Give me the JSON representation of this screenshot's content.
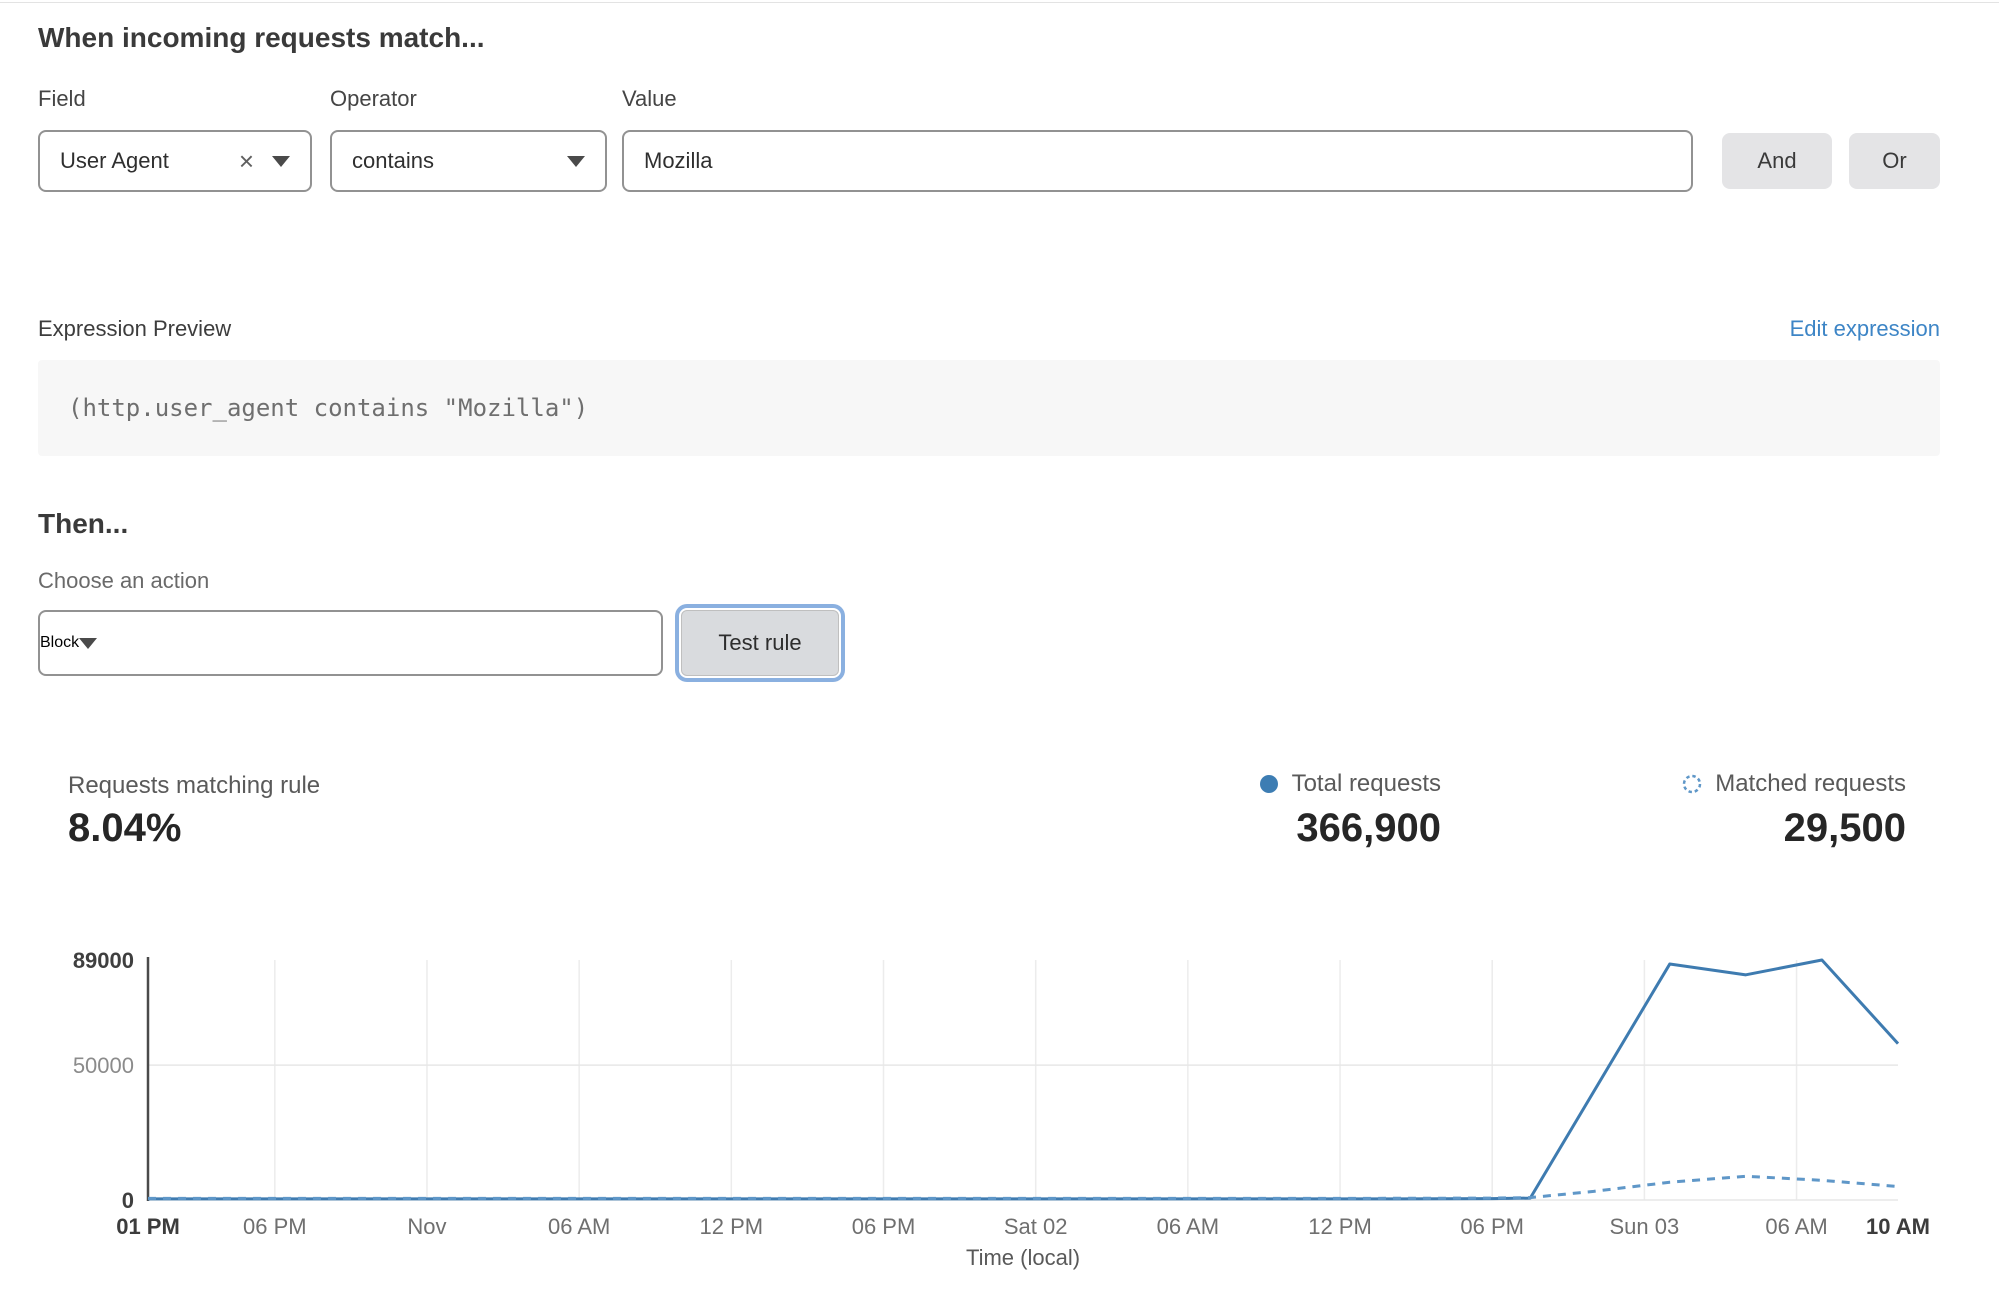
{
  "rule_builder": {
    "heading": "When incoming requests match...",
    "field": {
      "label": "Field",
      "selected": "User Agent"
    },
    "operator": {
      "label": "Operator",
      "selected": "contains"
    },
    "value": {
      "label": "Value",
      "text": "Mozilla"
    },
    "and_button": "And",
    "or_button": "Or",
    "clear_icon_glyph": "×"
  },
  "expression": {
    "label": "Expression Preview",
    "edit_link": "Edit expression",
    "code": "(http.user_agent contains \"Mozilla\")"
  },
  "action": {
    "heading": "Then...",
    "label": "Choose an action",
    "selected": "Block",
    "test_button": "Test rule"
  },
  "stats": {
    "matching": {
      "label": "Requests matching rule",
      "value": "8.04%"
    },
    "total": {
      "label": "Total requests",
      "value": "366,900"
    },
    "matched": {
      "label": "Matched requests",
      "value": "29,500"
    }
  },
  "colors": {
    "line_total": "#3e7bb0",
    "line_matched": "#5f97c8",
    "legend_dot": "#3d7db3",
    "link": "#3d85c6",
    "focus_ring": "#8ab0e0"
  },
  "chart_data": {
    "type": "line",
    "xlabel": "Time (local)",
    "ylabel": "",
    "x_unit": "hours since first tick (01 PM Fri)",
    "xlim": [
      0,
      69
    ],
    "ylim": [
      0,
      89000
    ],
    "grid": true,
    "legend_position": "top-right above chart",
    "y_ticks": [
      {
        "v": 89000,
        "label": "89000",
        "strong": true
      },
      {
        "v": 50000,
        "label": "50000",
        "strong": false
      },
      {
        "v": 0,
        "label": "0",
        "strong": true
      }
    ],
    "x_ticks": [
      {
        "h": 0,
        "label": "01 PM",
        "strong": true
      },
      {
        "h": 5,
        "label": "06 PM",
        "strong": false
      },
      {
        "h": 11,
        "label": "Nov",
        "strong": false
      },
      {
        "h": 17,
        "label": "06 AM",
        "strong": false
      },
      {
        "h": 23,
        "label": "12 PM",
        "strong": false
      },
      {
        "h": 29,
        "label": "06 PM",
        "strong": false
      },
      {
        "h": 35,
        "label": "Sat 02",
        "strong": false
      },
      {
        "h": 41,
        "label": "06 AM",
        "strong": false
      },
      {
        "h": 47,
        "label": "12 PM",
        "strong": false
      },
      {
        "h": 53,
        "label": "06 PM",
        "strong": false
      },
      {
        "h": 59,
        "label": "Sun 03",
        "strong": false
      },
      {
        "h": 65,
        "label": "06 AM",
        "strong": false
      },
      {
        "h": 69,
        "label": "10 AM",
        "strong": true
      }
    ],
    "series": [
      {
        "name": "Total requests",
        "style": "solid",
        "color": "#3e7bb0",
        "points": [
          [
            0,
            400
          ],
          [
            5,
            400
          ],
          [
            11,
            400
          ],
          [
            17,
            400
          ],
          [
            23,
            400
          ],
          [
            29,
            400
          ],
          [
            35,
            400
          ],
          [
            41,
            400
          ],
          [
            47,
            400
          ],
          [
            53,
            500
          ],
          [
            54.5,
            700
          ],
          [
            60,
            87500
          ],
          [
            63,
            83500
          ],
          [
            66,
            89000
          ],
          [
            69,
            58000
          ]
        ]
      },
      {
        "name": "Matched requests",
        "style": "dashed",
        "color": "#5f97c8",
        "points": [
          [
            0,
            600
          ],
          [
            5,
            600
          ],
          [
            11,
            600
          ],
          [
            17,
            600
          ],
          [
            23,
            600
          ],
          [
            29,
            600
          ],
          [
            35,
            600
          ],
          [
            41,
            600
          ],
          [
            47,
            600
          ],
          [
            53,
            700
          ],
          [
            54.5,
            900
          ],
          [
            57,
            3200
          ],
          [
            60,
            6600
          ],
          [
            63,
            8800
          ],
          [
            66,
            7300
          ],
          [
            69,
            5000
          ]
        ]
      }
    ],
    "legend": [
      {
        "label": "Total requests",
        "marker": "solid-dot"
      },
      {
        "label": "Matched requests",
        "marker": "dashed-circle"
      }
    ]
  }
}
